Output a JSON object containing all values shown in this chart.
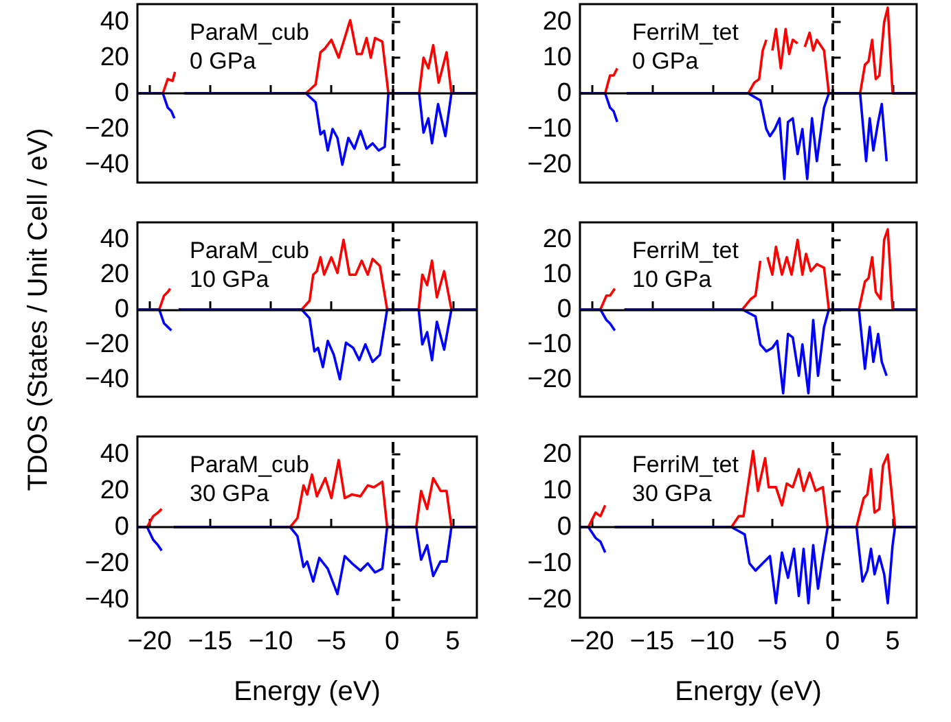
{
  "chart_data": [
    {
      "type": "line",
      "annotations": [
        "ParaM_cub",
        "0 GPa"
      ],
      "xlim": [
        -21,
        7
      ],
      "xticks": [
        -20,
        -15,
        -10,
        -5,
        0,
        5
      ],
      "ylim": [
        -50,
        50
      ],
      "yticks": [
        -40,
        -20,
        0,
        20,
        40
      ],
      "tick_labels": "y",
      "ref_lines": [
        {
          "axis": "x",
          "value": 0,
          "line_style": "dashed",
          "color": "#000000"
        },
        {
          "axis": "y",
          "value": 0,
          "line_style": "solid",
          "color": "#000000"
        }
      ],
      "series": [
        {
          "color": "#ff0000",
          "x": [
            -21,
            -18.9,
            -18.5,
            -18.1,
            -17.9,
            -17.7,
            -17.4,
            -17.15,
            -7.1,
            -6.3,
            -5.9,
            -5.55,
            -5.0,
            -4.4,
            -3.45,
            -2.9,
            -2.5,
            -2.1,
            -1.75,
            -1.4,
            -0.8,
            -0.3,
            2.24,
            2.6,
            3.0,
            3.4,
            3.85,
            4.5,
            4.9,
            7
          ],
          "values": [
            0,
            0,
            8,
            7,
            12,
            null,
            null,
            0,
            0,
            5,
            23,
            25,
            30,
            20,
            41,
            22,
            22,
            31,
            20,
            31,
            29,
            0,
            0,
            20,
            14,
            27,
            6,
            23,
            0,
            0
          ]
        },
        {
          "color": "#0000ff",
          "x": [
            -21,
            -18.9,
            -18.5,
            -18.2,
            -17.95,
            -17.7,
            -17.35,
            -17.15,
            -7.1,
            -6.3,
            -5.9,
            -5.6,
            -5.3,
            -4.9,
            -4.5,
            -4.1,
            -3.6,
            -3.1,
            -2.6,
            -2.1,
            -1.6,
            -1.1,
            -0.6,
            -0.3,
            2.24,
            2.6,
            3.0,
            3.3,
            3.8,
            4.4,
            4.9,
            7
          ],
          "values": [
            0,
            0,
            -8,
            -10,
            -14,
            null,
            null,
            0,
            0,
            -5,
            -23,
            -21,
            -32,
            -20,
            -25,
            -40,
            -25,
            -31,
            -21,
            -31,
            -28,
            -32,
            -30,
            0,
            0,
            -22,
            -14,
            -28,
            -6,
            -24,
            0,
            0
          ]
        }
      ]
    },
    {
      "type": "line",
      "annotations": [
        "FerriM_tet",
        "0 GPa"
      ],
      "xlim": [
        -21,
        7
      ],
      "xticks": [
        -20,
        -15,
        -10,
        -5,
        0,
        5
      ],
      "ylim": [
        -25,
        25
      ],
      "yticks": [
        -20,
        -10,
        0,
        10,
        20
      ],
      "tick_labels": "y",
      "ref_lines": [
        {
          "axis": "x",
          "value": 0,
          "line_style": "dashed",
          "color": "#000000"
        },
        {
          "axis": "y",
          "value": 0,
          "line_style": "solid",
          "color": "#000000"
        }
      ],
      "series": [
        {
          "color": "#ff0000",
          "x": [
            -21,
            -18.9,
            -18.5,
            -18.2,
            -17.9,
            -17.7,
            -17.4,
            -17.1,
            -7.0,
            -6.5,
            -6.1,
            -5.8,
            -5.5,
            -5.3,
            -5.0,
            -4.7,
            -4.3,
            -3.9,
            -3.6,
            -3.3,
            -2.9,
            -2.6,
            -2.3,
            -1.9,
            -1.6,
            -1.3,
            -0.7,
            -0.3,
            2.3,
            2.7,
            3.0,
            3.3,
            3.6,
            3.9,
            4.3,
            4.6,
            5.0,
            7
          ],
          "values": [
            0,
            0,
            5,
            5,
            7,
            null,
            null,
            0,
            0,
            3,
            4,
            12,
            15,
            null,
            12,
            18,
            7,
            18,
            11,
            15,
            14,
            null,
            13,
            17,
            12,
            15,
            12,
            0,
            0,
            8,
            9,
            15,
            4,
            5,
            20,
            24,
            0,
            0
          ]
        },
        {
          "color": "#0000ff",
          "x": [
            -21,
            -18.9,
            -18.5,
            -18.2,
            -17.9,
            -17.7,
            -17.3,
            -17.1,
            -7.0,
            -6.0,
            -5.5,
            -5.2,
            -4.8,
            -4.4,
            -4.0,
            -3.7,
            -3.3,
            -2.9,
            -2.5,
            -2.1,
            -1.7,
            -1.3,
            -0.7,
            -0.3,
            2.3,
            2.8,
            3.1,
            3.4,
            3.8,
            4.1,
            4.5,
            4.8,
            5.0,
            7
          ],
          "values": [
            0,
            0,
            -4,
            -5,
            -8,
            null,
            null,
            0,
            0,
            -2,
            -10,
            -12,
            -10,
            -7,
            -24,
            -8,
            -7,
            -17,
            -10,
            -24,
            -7,
            -19,
            -4,
            0,
            0,
            -19,
            -7,
            -16,
            -8,
            -3,
            -19,
            null,
            0,
            0
          ]
        }
      ]
    },
    {
      "type": "line",
      "annotations": [
        "ParaM_cub",
        "10 GPa"
      ],
      "ylabel": "TDOS (States / Unit Cell / eV)",
      "xlim": [
        -21,
        7
      ],
      "xticks": [
        -20,
        -15,
        -10,
        -5,
        0,
        5
      ],
      "ylim": [
        -50,
        50
      ],
      "yticks": [
        -40,
        -20,
        0,
        20,
        40
      ],
      "tick_labels": "y",
      "ref_lines": [
        {
          "axis": "x",
          "value": 0,
          "line_style": "dashed",
          "color": "#000000"
        },
        {
          "axis": "y",
          "value": 0,
          "line_style": "solid",
          "color": "#000000"
        }
      ],
      "series": [
        {
          "color": "#ff0000",
          "x": [
            -21,
            -19.2,
            -18.8,
            -18.5,
            -18.3,
            -18.1,
            -17.8,
            -17.6,
            -7.45,
            -6.8,
            -6.5,
            -6.2,
            -5.9,
            -5.6,
            -5.0,
            -4.5,
            -4.0,
            -3.5,
            -3.0,
            -2.5,
            -2.0,
            -1.6,
            -1.0,
            -0.4,
            2.2,
            2.5,
            2.9,
            3.3,
            3.7,
            4.3,
            4.9,
            7
          ],
          "values": [
            0,
            0,
            8,
            10,
            12,
            null,
            null,
            0,
            0,
            5,
            20,
            22,
            30,
            20,
            30,
            21,
            40,
            20,
            20,
            28,
            20,
            29,
            25,
            0,
            0,
            20,
            14,
            28,
            7,
            22,
            0,
            0
          ]
        },
        {
          "color": "#0000ff",
          "x": [
            -21,
            -19.2,
            -18.8,
            -18.5,
            -18.2,
            -18.0,
            -17.7,
            -17.6,
            -7.45,
            -6.8,
            -6.4,
            -6.1,
            -5.7,
            -5.3,
            -4.8,
            -4.3,
            -3.8,
            -3.2,
            -2.7,
            -2.2,
            -1.6,
            -1.0,
            -0.4,
            2.2,
            2.5,
            2.9,
            3.3,
            3.7,
            4.3,
            4.9,
            7
          ],
          "values": [
            0,
            0,
            -8,
            -10,
            -12,
            null,
            null,
            0,
            0,
            -5,
            -24,
            -22,
            -33,
            -18,
            -26,
            -40,
            -19,
            -22,
            -29,
            -20,
            -30,
            -26,
            0,
            0,
            -20,
            -13,
            -29,
            -7,
            -23,
            0,
            0
          ]
        }
      ]
    },
    {
      "type": "line",
      "annotations": [
        "FerriM_tet",
        "10 GPa"
      ],
      "xlim": [
        -21,
        7
      ],
      "xticks": [
        -20,
        -15,
        -10,
        -5,
        0,
        5
      ],
      "ylim": [
        -25,
        25
      ],
      "yticks": [
        -20,
        -10,
        0,
        10,
        20
      ],
      "tick_labels": "y",
      "ref_lines": [
        {
          "axis": "x",
          "value": 0,
          "line_style": "dashed",
          "color": "#000000"
        },
        {
          "axis": "y",
          "value": 0,
          "line_style": "solid",
          "color": "#000000"
        }
      ],
      "series": [
        {
          "color": "#ff0000",
          "x": [
            -21,
            -19.3,
            -18.8,
            -18.5,
            -18.1,
            -17.8,
            -17.5,
            -17.3,
            -7.5,
            -6.8,
            -6.4,
            -6.0,
            -5.7,
            -5.4,
            -5.0,
            -4.7,
            -4.2,
            -3.8,
            -3.4,
            -2.9,
            -2.5,
            -2.2,
            -1.8,
            -1.3,
            -0.7,
            -0.3,
            2.2,
            2.7,
            3.0,
            3.3,
            3.6,
            4.0,
            4.3,
            4.6,
            5.0,
            7
          ],
          "values": [
            0,
            0,
            4,
            4,
            6,
            null,
            null,
            0,
            0,
            3,
            4,
            14,
            null,
            15,
            10,
            18,
            10,
            15,
            10,
            20,
            10,
            16,
            11,
            13,
            12,
            0,
            0,
            8,
            9,
            15,
            5,
            3,
            20,
            23,
            0,
            0
          ]
        },
        {
          "color": "#0000ff",
          "x": [
            -21,
            -19.3,
            -18.8,
            -18.5,
            -18.1,
            -17.8,
            -17.4,
            -17.3,
            -7.5,
            -6.4,
            -6.0,
            -5.5,
            -5.0,
            -4.6,
            -4.1,
            -3.7,
            -3.3,
            -2.8,
            -2.5,
            -2.0,
            -1.6,
            -1.2,
            -0.7,
            -0.3,
            2.2,
            2.7,
            3.1,
            3.4,
            3.8,
            4.1,
            4.5,
            4.8,
            5.0,
            7
          ],
          "values": [
            0,
            0,
            -3,
            -4,
            -6,
            null,
            null,
            0,
            0,
            -2,
            -10,
            -12,
            -11,
            -9,
            -24,
            -7,
            -8,
            -19,
            -10,
            -24,
            -3,
            -19,
            -5,
            0,
            0,
            -17,
            -5,
            -15,
            -7,
            -15,
            -19,
            null,
            0,
            0
          ]
        }
      ]
    },
    {
      "type": "line",
      "annotations": [
        "ParaM_cub",
        "30 GPa"
      ],
      "xlabel": "Energy (eV)",
      "xlim": [
        -21,
        7
      ],
      "xticks": [
        -20,
        -15,
        -10,
        -5,
        0,
        5
      ],
      "ylim": [
        -50,
        50
      ],
      "yticks": [
        -40,
        -20,
        0,
        20,
        40
      ],
      "ref_lines": [
        {
          "axis": "x",
          "value": 0,
          "line_style": "dashed",
          "color": "#000000"
        },
        {
          "axis": "y",
          "value": 0,
          "line_style": "solid",
          "color": "#000000"
        }
      ],
      "series": [
        {
          "color": "#ff0000",
          "x": [
            -21,
            -20.2,
            -19.7,
            -19.3,
            -19.0,
            -18.8,
            -18.5,
            -18.0,
            -8.4,
            -7.8,
            -7.3,
            -7.0,
            -6.6,
            -6.2,
            -5.5,
            -5.0,
            -4.4,
            -3.9,
            -3.3,
            -2.6,
            -2.0,
            -1.5,
            -0.8,
            -0.4,
            2.0,
            2.4,
            2.9,
            3.4,
            4.0,
            4.5,
            4.9,
            7
          ],
          "values": [
            0,
            0,
            6,
            8,
            10,
            null,
            null,
            0,
            0,
            5,
            23,
            18,
            29,
            17,
            27,
            16,
            37,
            16,
            18,
            17,
            23,
            22,
            25,
            0,
            0,
            20,
            10,
            27,
            20,
            20,
            0,
            0
          ]
        },
        {
          "color": "#0000ff",
          "x": [
            -21,
            -20.2,
            -19.7,
            -19.3,
            -19.0,
            -18.9,
            -18.6,
            -18.0,
            -8.4,
            -7.8,
            -7.3,
            -7.0,
            -6.5,
            -6.0,
            -5.3,
            -4.5,
            -3.9,
            -3.3,
            -2.6,
            -2.0,
            -1.4,
            -0.8,
            -0.4,
            2.0,
            2.4,
            2.9,
            3.4,
            4.0,
            4.5,
            4.9,
            7
          ],
          "values": [
            0,
            0,
            -7,
            -10,
            -13,
            null,
            null,
            0,
            0,
            -5,
            -22,
            -19,
            -30,
            -17,
            -23,
            -37,
            -16,
            -20,
            -24,
            -20,
            -25,
            -23,
            0,
            0,
            -18,
            -10,
            -27,
            -19,
            -19,
            0,
            0
          ]
        }
      ]
    },
    {
      "type": "line",
      "annotations": [
        "FerriM_tet",
        "30 GPa"
      ],
      "xlabel": "Energy (eV)",
      "xlim": [
        -21,
        7
      ],
      "xticks": [
        -20,
        -15,
        -10,
        -5,
        0,
        5
      ],
      "ylim": [
        -25,
        25
      ],
      "yticks": [
        -20,
        -10,
        0,
        10,
        20
      ],
      "ref_lines": [
        {
          "axis": "x",
          "value": 0,
          "line_style": "dashed",
          "color": "#000000"
        },
        {
          "axis": "y",
          "value": 0,
          "line_style": "solid",
          "color": "#000000"
        }
      ],
      "series": [
        {
          "color": "#ff0000",
          "x": [
            -21,
            -20.3,
            -19.7,
            -19.3,
            -18.9,
            -18.7,
            -18.4,
            -18.1,
            -8.4,
            -7.8,
            -7.4,
            -7.0,
            -6.6,
            -6.2,
            -5.6,
            -5.3,
            -4.7,
            -4.2,
            -3.8,
            -3.3,
            -2.8,
            -2.4,
            -1.9,
            -1.4,
            -0.8,
            -0.4,
            2.0,
            2.6,
            2.9,
            3.2,
            3.5,
            3.9,
            4.2,
            4.6,
            5.2,
            7
          ],
          "values": [
            0,
            0,
            4,
            3,
            6,
            null,
            null,
            0,
            0,
            3,
            3,
            12,
            21,
            10,
            19,
            11,
            11,
            6,
            12,
            11,
            16,
            10,
            15,
            10,
            11,
            0,
            0,
            8,
            9,
            16,
            4,
            5,
            17,
            20,
            0,
            0
          ]
        },
        {
          "color": "#0000ff",
          "x": [
            -21,
            -20.3,
            -19.7,
            -19.3,
            -18.9,
            -18.7,
            -18.4,
            -18.1,
            -8.4,
            -7.3,
            -6.9,
            -6.4,
            -5.8,
            -5.2,
            -4.7,
            -4.2,
            -3.7,
            -3.2,
            -2.8,
            -2.4,
            -2.0,
            -1.6,
            -1.2,
            -0.8,
            -0.4,
            2.0,
            2.5,
            2.9,
            3.2,
            3.5,
            3.9,
            4.3,
            4.6,
            5.0,
            5.2,
            7
          ],
          "values": [
            0,
            0,
            -3,
            -4,
            -7,
            null,
            null,
            0,
            0,
            -2,
            -10,
            -12,
            -10,
            -8,
            -21,
            -7,
            -14,
            -6,
            -19,
            -6,
            -21,
            -5,
            -17,
            -8,
            0,
            0,
            -15,
            -12,
            -6,
            -13,
            -8,
            -13,
            -21,
            -5,
            0,
            0
          ]
        }
      ]
    }
  ]
}
